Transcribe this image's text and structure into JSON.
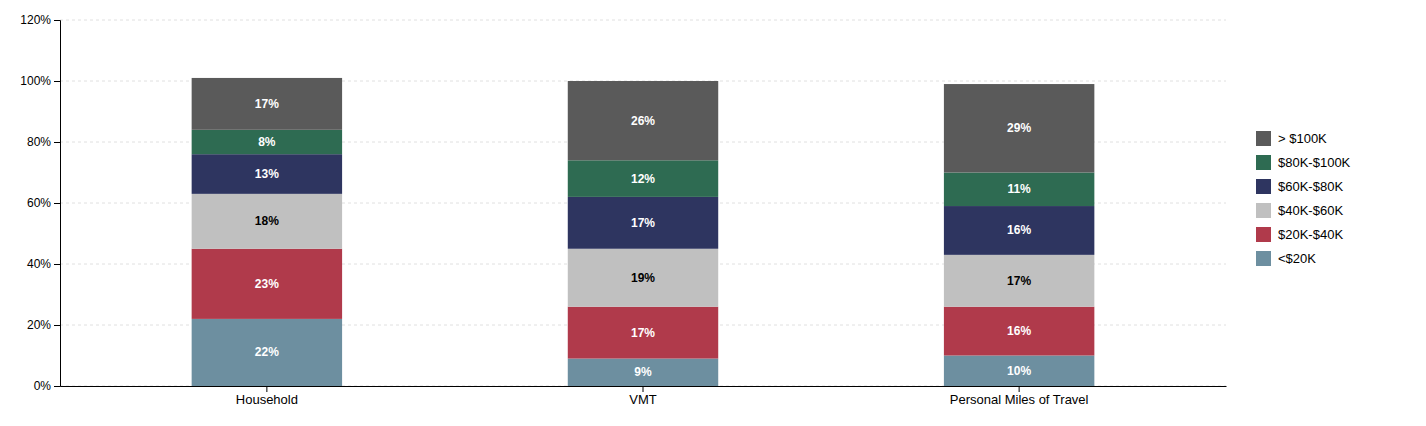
{
  "chart_data": {
    "type": "bar",
    "stacked": true,
    "data_labels": true,
    "grid": true,
    "legend": "right",
    "categories": [
      "Household",
      "VMT",
      "Personal Miles of Travel"
    ],
    "series": [
      {
        "name": "<$20K",
        "color": "#6d8fa0",
        "values": [
          22,
          9,
          10
        ],
        "value_labels": [
          "22%",
          "9%",
          "10%"
        ]
      },
      {
        "name": "$20K-$40K",
        "color": "#b03a4b",
        "values": [
          23,
          17,
          16
        ],
        "value_labels": [
          "23%",
          "17%",
          "16%"
        ]
      },
      {
        "name": "$40K-$60K",
        "color": "#c0c0c0",
        "values": [
          18,
          19,
          17
        ],
        "value_labels": [
          "18%",
          "19%",
          "17%"
        ]
      },
      {
        "name": "$60K-$80K",
        "color": "#2e3560",
        "values": [
          13,
          17,
          16
        ],
        "value_labels": [
          "13%",
          "17%",
          "16%"
        ]
      },
      {
        "name": "$80K-$100K",
        "color": "#2e6b52",
        "values": [
          8,
          12,
          11
        ],
        "value_labels": [
          "8%",
          "12%",
          "11%"
        ]
      },
      {
        "name": "> $100K",
        "color": "#5a5a5a",
        "values": [
          17,
          26,
          29
        ],
        "value_labels": [
          "17%",
          "26%",
          "29%"
        ]
      }
    ],
    "ylim": [
      0,
      120
    ],
    "yticks": [
      {
        "value": 0,
        "label": "0%"
      },
      {
        "value": 20,
        "label": "20%"
      },
      {
        "value": 40,
        "label": "40%"
      },
      {
        "value": 60,
        "label": "60%"
      },
      {
        "value": 80,
        "label": "80%"
      },
      {
        "value": 100,
        "label": "100%"
      },
      {
        "value": 120,
        "label": "120%"
      }
    ]
  }
}
